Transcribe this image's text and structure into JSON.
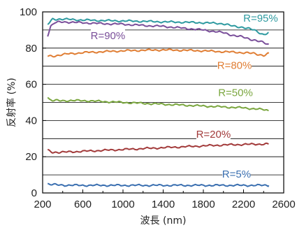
{
  "chart_data": {
    "type": "line",
    "xlabel": "波長 (nm)",
    "ylabel": "反射率 (%)",
    "xlim": [
      200,
      2600
    ],
    "ylim": [
      0,
      100
    ],
    "xticks": [
      200,
      600,
      1000,
      1400,
      1800,
      2200,
      2600
    ],
    "yticks": [
      0,
      20,
      40,
      60,
      80,
      100
    ],
    "ygrid_minor": [
      10,
      30,
      50,
      70,
      90
    ],
    "grid": "horizontal",
    "legend": "inline labels",
    "series": [
      {
        "name": "R=95%",
        "color": "#2e9aa0",
        "x": [
          250,
          300,
          400,
          600,
          800,
          1000,
          1200,
          1400,
          1600,
          1800,
          2000,
          2100,
          2200,
          2300,
          2400,
          2450
        ],
        "y": [
          93,
          96,
          96,
          95.5,
          95.2,
          95,
          94.8,
          94.5,
          94.3,
          94,
          93.5,
          92,
          91.5,
          90,
          87.5,
          88.5
        ]
      },
      {
        "name": "R=90%",
        "color": "#7a4f9a",
        "x": [
          250,
          280,
          320,
          400,
          600,
          800,
          1000,
          1200,
          1400,
          1600,
          1800,
          2000,
          2100,
          2200,
          2300,
          2400,
          2450
        ],
        "y": [
          87,
          92,
          94,
          94.5,
          94,
          93.5,
          93.2,
          92.5,
          92,
          91,
          90,
          88.5,
          87,
          86,
          84.5,
          83,
          82
        ]
      },
      {
        "name": "R=80%",
        "color": "#e07e34",
        "x": [
          250,
          300,
          400,
          600,
          800,
          1000,
          1200,
          1400,
          1600,
          1800,
          2000,
          2200,
          2300,
          2400,
          2450
        ],
        "y": [
          75.5,
          75.5,
          76.5,
          77.5,
          78,
          78.5,
          78.8,
          79,
          78.8,
          78.5,
          78,
          77.5,
          77,
          76,
          77
        ]
      },
      {
        "name": "R=50%",
        "color": "#7aa63e",
        "x": [
          250,
          270,
          300,
          400,
          600,
          800,
          1000,
          1200,
          1400,
          1600,
          1800,
          2000,
          2200,
          2400,
          2450
        ],
        "y": [
          53,
          51.5,
          51,
          51,
          51,
          50.5,
          50,
          49.5,
          49,
          48.5,
          48,
          47.5,
          47,
          46,
          45.5
        ]
      },
      {
        "name": "R=20%",
        "color": "#a23a3a",
        "x": [
          250,
          300,
          400,
          600,
          800,
          1000,
          1200,
          1400,
          1600,
          1800,
          2000,
          2200,
          2400,
          2450
        ],
        "y": [
          23.5,
          22.5,
          22.5,
          23,
          23.5,
          24,
          24.5,
          25,
          25.5,
          26,
          26.5,
          26.8,
          27,
          27
        ]
      },
      {
        "name": "R=5%",
        "color": "#3a6fb0",
        "x": [
          250,
          300,
          400,
          600,
          800,
          1000,
          1200,
          1400,
          1600,
          1800,
          2000,
          2200,
          2400,
          2450
        ],
        "y": [
          5,
          4.6,
          4.3,
          4.2,
          4.2,
          4.2,
          4.2,
          4.2,
          4.2,
          4.2,
          4.2,
          4.2,
          4.2,
          4.2
        ]
      }
    ]
  }
}
